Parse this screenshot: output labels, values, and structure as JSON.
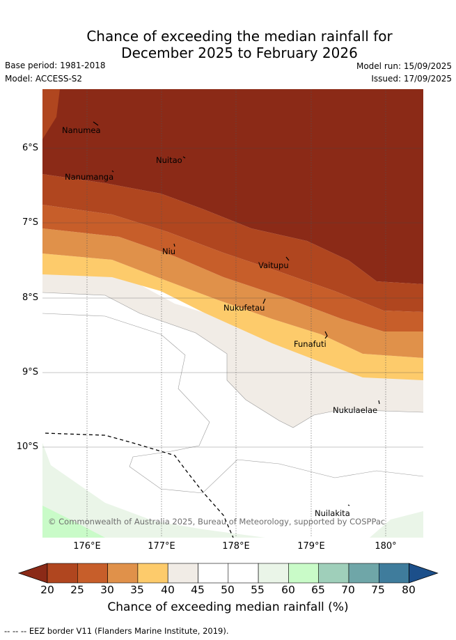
{
  "title": {
    "line1": "Chance of exceeding the median rainfall for",
    "line2": "December 2025 to February 2026"
  },
  "meta": {
    "base_period": "Base period: 1981-2018",
    "model": "Model: ACCESS-S2",
    "model_run": "Model run: 15/09/2025",
    "issued": "Issued: 17/09/2025"
  },
  "axes": {
    "lat_ticks": [
      "6°S",
      "7°S",
      "8°S",
      "9°S",
      "10°S"
    ],
    "lon_ticks": [
      "176°E",
      "177°E",
      "178°E",
      "179°E",
      "180°"
    ]
  },
  "places": [
    "Nanumea",
    "Nuitao",
    "Nanumanga",
    "Niu",
    "Vaitupu",
    "Nukufetau",
    "Funafuti",
    "Nukulaelae",
    "Nuilakita"
  ],
  "copyright": "© Commonwealth of Australia 2025, Bureau of Meteorology, supported by COSPPac",
  "colorbar": {
    "labels": [
      "20",
      "25",
      "30",
      "35",
      "40",
      "45",
      "50",
      "55",
      "60",
      "65",
      "70",
      "75",
      "80"
    ],
    "colors": [
      "#8b2a17",
      "#b0461f",
      "#c75e2a",
      "#e0914a",
      "#fdcb6b",
      "#f1ece6",
      "#ffffff",
      "#ffffff",
      "#eaf5e8",
      "#c9fbc8",
      "#9fcfba",
      "#6fa6a8",
      "#3f7c9c",
      "#1c4f8a"
    ],
    "title": "Chance of exceeding median rainfall (%)"
  },
  "footnote": "-- -- -- EEZ border V11 (Flanders Marine Institute, 2019)."
}
